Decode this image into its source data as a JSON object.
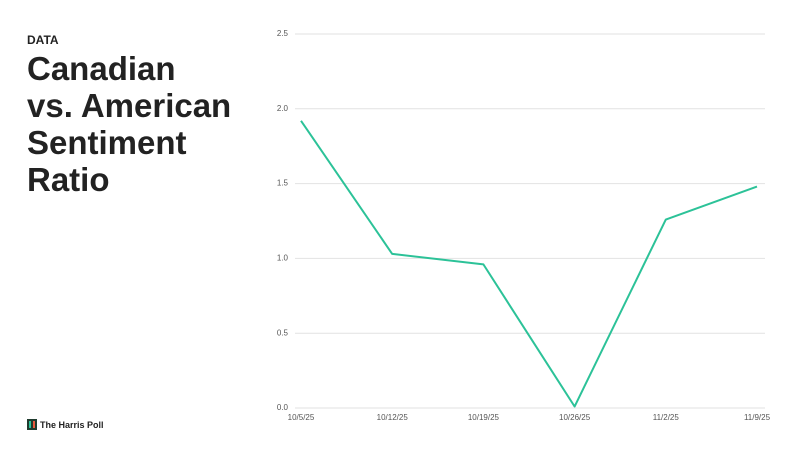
{
  "header": {
    "label": "DATA",
    "title": [
      "Canadian",
      "vs. American",
      "Sentiment",
      "Ratio"
    ]
  },
  "brand": "The Harris Poll",
  "chart_data": {
    "type": "line",
    "categories": [
      "10/5/25",
      "10/12/25",
      "10/19/25",
      "10/26/25",
      "11/2/25",
      "11/9/25"
    ],
    "series": [
      {
        "name": "Canadian vs. American Sentiment Ratio",
        "color": "#2cc298",
        "values": [
          1.92,
          1.03,
          0.96,
          0.01,
          1.26,
          1.48
        ]
      }
    ],
    "ylim": [
      0,
      2.5
    ],
    "yticks": [
      {
        "value": 0,
        "label": "0.0"
      },
      0.5,
      {
        "value": 1,
        "label": "1.0"
      },
      1.5,
      {
        "value": 2,
        "label": "2.0"
      },
      2.5
    ],
    "grid": true
  }
}
